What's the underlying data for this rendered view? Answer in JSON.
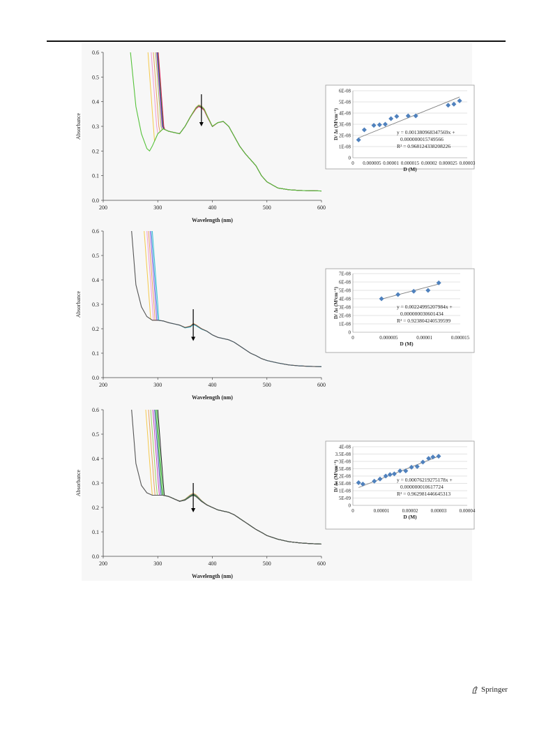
{
  "publisher": {
    "name": "Springer"
  },
  "colors": {
    "marker": "#4f81bd",
    "trend": "#7f7f7f",
    "grid": "#c8c8c8"
  },
  "chart_data": [
    {
      "type": "line",
      "panel": "a-spectra",
      "xlabel": "Wavelength (nm)",
      "ylabel": "Absorbance",
      "xlim": [
        200,
        600
      ],
      "ylim": [
        0,
        0.6
      ],
      "xticks": [
        "200",
        "300",
        "400",
        "500",
        "600"
      ],
      "yticks": [
        "0.0",
        "0.1",
        "0.2",
        "0.3",
        "0.4",
        "0.5",
        "0.6"
      ],
      "baseline": {
        "name": "",
        "color": "#55c23a",
        "x": [
          250,
          260,
          270,
          280,
          285,
          290,
          300,
          310,
          320,
          330,
          340,
          350,
          360,
          370,
          375,
          380,
          385,
          390,
          400,
          410,
          420,
          430,
          440,
          450,
          460,
          470,
          480,
          490,
          500,
          520,
          540,
          560,
          580,
          600
        ],
        "y": [
          0.6,
          0.38,
          0.27,
          0.21,
          0.2,
          0.22,
          0.27,
          0.29,
          0.28,
          0.275,
          0.27,
          0.3,
          0.34,
          0.375,
          0.385,
          0.38,
          0.37,
          0.345,
          0.3,
          0.315,
          0.32,
          0.3,
          0.26,
          0.22,
          0.19,
          0.165,
          0.14,
          0.1,
          0.075,
          0.05,
          0.043,
          0.04,
          0.039,
          0.038
        ]
      },
      "series": [
        {
          "name": "",
          "color": "#f6c94a",
          "cutoff": 282,
          "peak": 0.383
        },
        {
          "name": "",
          "color": "#f19ad4",
          "cutoff": 288,
          "peak": 0.382
        },
        {
          "name": "",
          "color": "#e8a060",
          "cutoff": 292,
          "peak": 0.38
        },
        {
          "name": "",
          "color": "#a0c060",
          "cutoff": 296,
          "peak": 0.379
        },
        {
          "name": "",
          "color": "#c040c0",
          "cutoff": 298,
          "peak": 0.378
        },
        {
          "name": "",
          "color": "#5050d0",
          "cutoff": 299,
          "peak": 0.377
        },
        {
          "name": "",
          "color": "#2a8a2a",
          "cutoff": 300,
          "peak": 0.376
        },
        {
          "name": "",
          "color": "#e02060",
          "cutoff": 301,
          "peak": 0.375
        }
      ],
      "arrow": {
        "x": 380,
        "y_from": 0.43,
        "y_to": 0.3
      }
    },
    {
      "type": "scatter",
      "panel": "a-fit",
      "xlabel": "D (M)",
      "ylabel": "D/ Δε (M²cm⁻¹)",
      "xlim": [
        0,
        3e-05
      ],
      "ylim": [
        0,
        6e-08
      ],
      "xticks": [
        "0",
        "0.000005",
        "0.00001",
        "0.000015",
        "0.00002",
        "0.000025",
        "0.00003"
      ],
      "yticks": [
        "0",
        "1E-08",
        "2E-08",
        "3E-08",
        "4E-08",
        "5E-08",
        "6E-08"
      ],
      "x": [
        1.5e-06,
        3e-06,
        5.5e-06,
        7e-06,
        8.5e-06,
        1e-05,
        1.15e-05,
        1.45e-05,
        1.65e-05,
        2.5e-05,
        2.65e-05,
        2.8e-05
      ],
      "y": [
        1.6e-08,
        2.5e-08,
        2.9e-08,
        2.95e-08,
        3e-08,
        3.5e-08,
        3.7e-08,
        3.75e-08,
        3.75e-08,
        4.7e-08,
        4.8e-08,
        5.1e-08
      ],
      "fit": {
        "slope": 0.001380968347569,
        "intercept": 1.5749566e-08
      },
      "equation_lines": [
        "y = 0.001380968347569x +",
        "0.000000015749566",
        "R² = 0.968124338208226"
      ]
    },
    {
      "type": "line",
      "panel": "b-spectra",
      "xlabel": "Wavelength (nm)",
      "ylabel": "Absorbance",
      "xlim": [
        200,
        600
      ],
      "ylim": [
        0,
        0.6
      ],
      "xticks": [
        "200",
        "300",
        "400",
        "500",
        "600"
      ],
      "yticks": [
        "0.0",
        "0.1",
        "0.2",
        "0.3",
        "0.4",
        "0.5",
        "0.6"
      ],
      "baseline": {
        "name": "",
        "color": "#555555",
        "x": [
          252,
          260,
          270,
          280,
          290,
          300,
          310,
          320,
          330,
          340,
          350,
          360,
          365,
          370,
          380,
          390,
          400,
          410,
          420,
          430,
          440,
          450,
          460,
          470,
          480,
          490,
          500,
          520,
          540,
          560,
          580,
          600
        ],
        "y": [
          0.6,
          0.38,
          0.29,
          0.25,
          0.235,
          0.235,
          0.232,
          0.225,
          0.22,
          0.215,
          0.205,
          0.21,
          0.22,
          0.215,
          0.2,
          0.19,
          0.175,
          0.165,
          0.16,
          0.155,
          0.145,
          0.13,
          0.115,
          0.1,
          0.09,
          0.078,
          0.07,
          0.06,
          0.052,
          0.048,
          0.046,
          0.045
        ]
      },
      "series": [
        {
          "name": "",
          "color": "#f6c94a",
          "cutoff": 275,
          "peak": 0.222
        },
        {
          "name": "",
          "color": "#f19ad4",
          "cutoff": 280,
          "peak": 0.221
        },
        {
          "name": "",
          "color": "#e8a060",
          "cutoff": 283,
          "peak": 0.22
        },
        {
          "name": "",
          "color": "#a060e0",
          "cutoff": 286,
          "peak": 0.219
        },
        {
          "name": "",
          "color": "#3aa0e0",
          "cutoff": 288,
          "peak": 0.218
        },
        {
          "name": "",
          "color": "#40c0d0",
          "cutoff": 290,
          "peak": 0.217
        }
      ],
      "arrow": {
        "x": 365,
        "y_from": 0.28,
        "y_to": 0.15
      }
    },
    {
      "type": "scatter",
      "panel": "b-fit",
      "xlabel": "D (M)",
      "ylabel": "D/ Δε (M²cm⁻¹)",
      "xlim": [
        0,
        1.5e-05
      ],
      "ylim": [
        0,
        7e-08
      ],
      "xticks": [
        "0",
        "0.000005",
        "0.00001",
        "0.000015"
      ],
      "yticks": [
        "0",
        "1E-08",
        "2E-08",
        "3E-08",
        "4E-08",
        "5E-08",
        "6E-08",
        "7E-08"
      ],
      "x": [
        4e-06,
        6.3e-06,
        8.5e-06,
        1.05e-05,
        1.2e-05
      ],
      "y": [
        4e-08,
        4.5e-08,
        4.9e-08,
        5e-08,
        5.9e-08
      ],
      "fit": {
        "slope": 0.00224995207984,
        "intercept": 3.0601434e-08
      },
      "equation_lines": [
        "y = 0.00224995207984x +",
        "0.000000030601434",
        "R² = 0.923804240539599"
      ]
    },
    {
      "type": "line",
      "panel": "c-spectra",
      "xlabel": "Wavelength (nm)",
      "ylabel": "Absorbance",
      "xlim": [
        200,
        600
      ],
      "ylim": [
        0,
        0.6
      ],
      "xticks": [
        "200",
        "300",
        "400",
        "500",
        "600"
      ],
      "yticks": [
        "0.0",
        "0.1",
        "0.2",
        "0.3",
        "0.4",
        "0.5",
        "0.6"
      ],
      "baseline": {
        "name": "",
        "color": "#555555",
        "x": [
          252,
          260,
          270,
          280,
          290,
          300,
          310,
          320,
          330,
          340,
          350,
          360,
          365,
          370,
          380,
          390,
          400,
          410,
          420,
          430,
          440,
          450,
          460,
          470,
          480,
          490,
          500,
          520,
          540,
          560,
          580,
          600
        ],
        "y": [
          0.6,
          0.38,
          0.29,
          0.26,
          0.25,
          0.25,
          0.25,
          0.245,
          0.235,
          0.225,
          0.23,
          0.245,
          0.25,
          0.245,
          0.225,
          0.21,
          0.2,
          0.19,
          0.185,
          0.18,
          0.17,
          0.155,
          0.14,
          0.125,
          0.11,
          0.098,
          0.085,
          0.07,
          0.06,
          0.055,
          0.052,
          0.05
        ]
      },
      "series": [
        {
          "name": "",
          "color": "#f6c94a",
          "cutoff": 278,
          "peak": 0.258
        },
        {
          "name": "",
          "color": "#e8a060",
          "cutoff": 283,
          "peak": 0.257
        },
        {
          "name": "",
          "color": "#a0d060",
          "cutoff": 287,
          "peak": 0.256
        },
        {
          "name": "",
          "color": "#c040c0",
          "cutoff": 291,
          "peak": 0.255
        },
        {
          "name": "",
          "color": "#5050d0",
          "cutoff": 294,
          "peak": 0.254
        },
        {
          "name": "",
          "color": "#2a9a2a",
          "cutoff": 296,
          "peak": 0.253
        },
        {
          "name": "",
          "color": "#40c040",
          "cutoff": 298,
          "peak": 0.252
        },
        {
          "name": "",
          "color": "#202020",
          "cutoff": 300,
          "peak": 0.25
        }
      ],
      "arrow": {
        "x": 365,
        "y_from": 0.3,
        "y_to": 0.18
      }
    },
    {
      "type": "scatter",
      "panel": "c-fit",
      "xlabel": "D (M)",
      "ylabel": "D/ Δε (M²cm⁻¹)",
      "xlim": [
        0,
        4e-05
      ],
      "ylim": [
        0,
        4e-08
      ],
      "xticks": [
        "0",
        "0.00001",
        "0.00002",
        "0.00003",
        "0.00004"
      ],
      "yticks": [
        "0",
        "5E-09",
        "1E-08",
        "1.5E-08",
        "2E-08",
        "2.5E-08",
        "3E-08",
        "3.5E-08",
        "4E-08"
      ],
      "x": [
        2e-06,
        3.5e-06,
        7.5e-06,
        9.5e-06,
        1.15e-05,
        1.3e-05,
        1.45e-05,
        1.65e-05,
        1.85e-05,
        2.05e-05,
        2.25e-05,
        2.45e-05,
        2.65e-05,
        2.8e-05,
        3e-05
      ],
      "y": [
        1.55e-08,
        1.45e-08,
        1.65e-08,
        1.8e-08,
        2e-08,
        2.1e-08,
        2.15e-08,
        2.35e-08,
        2.35e-08,
        2.6e-08,
        2.65e-08,
        2.95e-08,
        3.2e-08,
        3.3e-08,
        3.35e-08
      ],
      "fit": {
        "slope": 0.0007621927517,
        "intercept": 1.0617724e-08
      },
      "equation_lines": [
        "y = 0.00076219275178x +",
        "0.000000010617724",
        "R² = 0.962981446645313"
      ]
    }
  ]
}
